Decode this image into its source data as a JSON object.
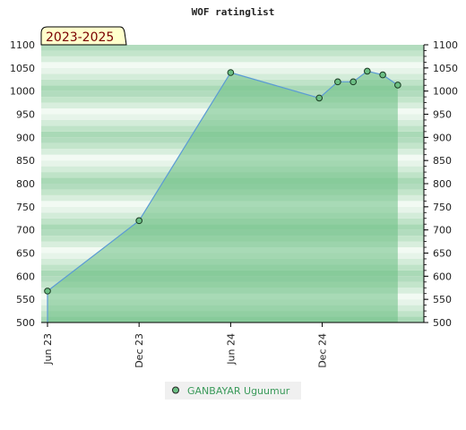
{
  "chart_data": {
    "type": "area",
    "title": "WOF ratinglist",
    "badge": "2023-2025",
    "ylim": [
      500,
      1100
    ],
    "yticks": [
      500,
      550,
      600,
      650,
      700,
      750,
      800,
      850,
      900,
      950,
      1000,
      1050,
      1100
    ],
    "xlim": [
      "2023-06-01",
      "2025-06-15"
    ],
    "xticks": [
      {
        "date": "2023-06-01",
        "label": "Jun 23"
      },
      {
        "date": "2023-12-01",
        "label": "Dec 23"
      },
      {
        "date": "2024-06-01",
        "label": "Jun 24"
      },
      {
        "date": "2024-12-01",
        "label": "Dec 24"
      },
      {
        "date": "2025-06-15",
        "label": ""
      }
    ],
    "grid": "banded",
    "legend_position": "bottom",
    "series": [
      {
        "name": "GANBAYAR Uguumur",
        "color": "#6cbf84",
        "line_color": "#5b9bd5",
        "points": [
          {
            "x": "2023-06-01",
            "y": 568
          },
          {
            "x": "2023-12-01",
            "y": 720
          },
          {
            "x": "2024-06-01",
            "y": 1040
          },
          {
            "x": "2024-11-25",
            "y": 985
          },
          {
            "x": "2025-01-01",
            "y": 1020
          },
          {
            "x": "2025-02-01",
            "y": 1020
          },
          {
            "x": "2025-03-01",
            "y": 1043
          },
          {
            "x": "2025-04-01",
            "y": 1035
          },
          {
            "x": "2025-05-01",
            "y": 1013
          }
        ]
      }
    ]
  }
}
